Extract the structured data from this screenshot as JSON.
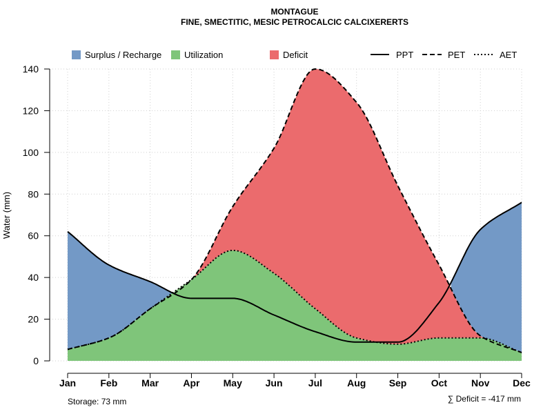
{
  "chart_data": {
    "type": "area",
    "title": "MONTAGUE",
    "subtitle": "FINE, SMECTITIC, MESIC PETROCALCIC CALCIXERERTS",
    "xlabel": "",
    "ylabel": "Water (mm)",
    "categories": [
      "Jan",
      "Feb",
      "Mar",
      "Apr",
      "May",
      "Jun",
      "Jul",
      "Aug",
      "Sep",
      "Oct",
      "Nov",
      "Dec"
    ],
    "ylim": [
      0,
      140
    ],
    "yticks": [
      0,
      20,
      40,
      60,
      80,
      100,
      120,
      140
    ],
    "grid": true,
    "series": [
      {
        "name": "PPT",
        "style": "solid",
        "values": [
          62,
          46,
          38,
          30,
          30,
          22,
          14,
          9,
          9,
          28,
          63,
          76
        ]
      },
      {
        "name": "PET",
        "style": "dashed",
        "values": [
          5.5,
          11,
          25,
          39,
          74,
          102,
          140,
          124,
          84,
          46,
          12,
          4
        ]
      },
      {
        "name": "AET",
        "style": "dotted",
        "values": [
          5.5,
          11,
          25,
          39,
          53,
          42,
          25,
          11,
          8,
          11,
          11,
          4
        ]
      }
    ],
    "legend": {
      "placement": "top",
      "fills": [
        {
          "label": "Surplus / Recharge",
          "color": "#7399C6"
        },
        {
          "label": "Utilization",
          "color": "#7FC57A"
        },
        {
          "label": "Deficit",
          "color": "#EB6B6D"
        }
      ],
      "lines": [
        {
          "label": "PPT",
          "style": "solid"
        },
        {
          "label": "PET",
          "style": "dashed"
        },
        {
          "label": "AET",
          "style": "dotted"
        }
      ]
    },
    "annotations": {
      "storage": "Storage: 73 mm",
      "deficit": "∑ Deficit = -417 mm"
    }
  }
}
